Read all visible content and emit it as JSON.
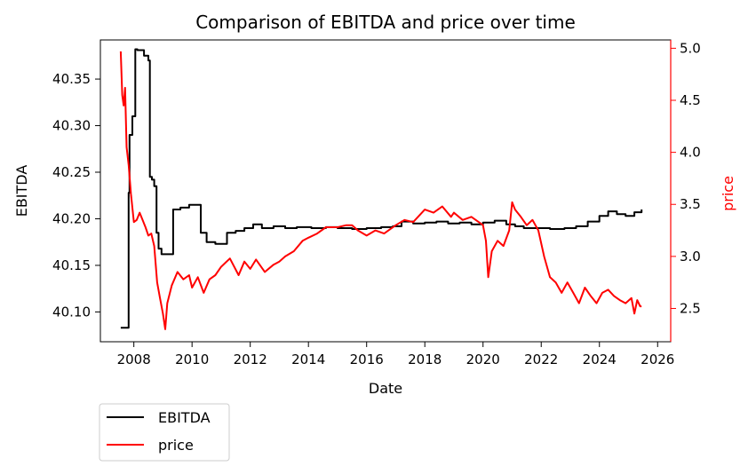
{
  "chart_data": {
    "type": "line",
    "title": "Comparison of EBITDA and price over time",
    "xlabel": "Date",
    "ylabel_left": "EBITDA",
    "ylabel_right": "price",
    "xlim": [
      2006.85,
      2026.45
    ],
    "ylim_left": [
      40.068,
      40.392
    ],
    "ylim_right": [
      2.18,
      5.08
    ],
    "x_ticks": [
      2008,
      2010,
      2012,
      2014,
      2016,
      2018,
      2020,
      2022,
      2024,
      2026
    ],
    "y_ticks_left": [
      40.1,
      40.15,
      40.2,
      40.25,
      40.3,
      40.35
    ],
    "y_ticks_right": [
      2.5,
      3.0,
      3.5,
      4.0,
      4.5,
      5.0
    ],
    "legend_position": "below-left",
    "colors": {
      "EBITDA": "#000000",
      "price": "#ff0000",
      "axis_right": "#ff0000"
    },
    "series": [
      {
        "name": "EBITDA",
        "axis": "left",
        "step": true,
        "x": [
          2007.55,
          2007.82,
          2007.85,
          2007.95,
          2008.05,
          2008.12,
          2008.35,
          2008.5,
          2008.55,
          2008.62,
          2008.7,
          2008.78,
          2008.85,
          2008.95,
          2009.2,
          2009.35,
          2009.6,
          2009.9,
          2010.3,
          2010.5,
          2010.8,
          2011.2,
          2011.5,
          2011.8,
          2012.1,
          2012.4,
          2012.8,
          2013.2,
          2013.6,
          2014.1,
          2014.6,
          2015.0,
          2015.5,
          2016.0,
          2016.5,
          2016.9,
          2017.2,
          2017.6,
          2018.0,
          2018.4,
          2018.8,
          2019.2,
          2019.6,
          2020.0,
          2020.4,
          2020.8,
          2021.1,
          2021.4,
          2021.8,
          2022.3,
          2022.8,
          2023.2,
          2023.6,
          2024.0,
          2024.3,
          2024.6,
          2024.9,
          2025.2,
          2025.45
        ],
        "values": [
          40.083,
          40.228,
          40.29,
          40.31,
          40.382,
          40.381,
          40.375,
          40.37,
          40.245,
          40.242,
          40.235,
          40.185,
          40.168,
          40.162,
          40.162,
          40.21,
          40.212,
          40.215,
          40.185,
          40.175,
          40.173,
          40.185,
          40.187,
          40.19,
          40.194,
          40.19,
          40.192,
          40.19,
          40.191,
          40.19,
          40.191,
          40.19,
          40.189,
          40.19,
          40.191,
          40.192,
          40.197,
          40.195,
          40.196,
          40.197,
          40.195,
          40.196,
          40.194,
          40.196,
          40.198,
          40.194,
          40.192,
          40.19,
          40.19,
          40.189,
          40.19,
          40.192,
          40.197,
          40.203,
          40.208,
          40.205,
          40.203,
          40.207,
          40.21
        ]
      },
      {
        "name": "price",
        "axis": "right",
        "step": false,
        "x": [
          2007.55,
          2007.6,
          2007.65,
          2007.7,
          2007.75,
          2007.82,
          2007.9,
          2008.0,
          2008.1,
          2008.2,
          2008.3,
          2008.4,
          2008.5,
          2008.6,
          2008.7,
          2008.8,
          2008.9,
          2009.0,
          2009.08,
          2009.15,
          2009.3,
          2009.5,
          2009.7,
          2009.9,
          2010.0,
          2010.2,
          2010.4,
          2010.6,
          2010.8,
          2011.0,
          2011.3,
          2011.6,
          2011.8,
          2012.0,
          2012.2,
          2012.5,
          2012.8,
          2013.0,
          2013.2,
          2013.5,
          2013.8,
          2014.0,
          2014.3,
          2014.6,
          2015.0,
          2015.3,
          2015.5,
          2015.7,
          2016.0,
          2016.3,
          2016.6,
          2017.0,
          2017.3,
          2017.6,
          2018.0,
          2018.3,
          2018.6,
          2018.9,
          2019.0,
          2019.3,
          2019.6,
          2019.9,
          2020.0,
          2020.1,
          2020.18,
          2020.3,
          2020.5,
          2020.7,
          2020.9,
          2021.0,
          2021.1,
          2021.3,
          2021.5,
          2021.7,
          2021.9,
          2022.1,
          2022.3,
          2022.5,
          2022.7,
          2022.9,
          2023.1,
          2023.3,
          2023.5,
          2023.7,
          2023.9,
          2024.1,
          2024.3,
          2024.5,
          2024.7,
          2024.9,
          2025.1,
          2025.2,
          2025.3,
          2025.4,
          2025.45
        ],
        "values": [
          4.97,
          4.55,
          4.45,
          4.62,
          4.05,
          3.88,
          3.6,
          3.33,
          3.35,
          3.42,
          3.35,
          3.28,
          3.2,
          3.22,
          3.1,
          2.75,
          2.6,
          2.45,
          2.3,
          2.55,
          2.72,
          2.85,
          2.78,
          2.82,
          2.7,
          2.8,
          2.65,
          2.78,
          2.82,
          2.9,
          2.98,
          2.82,
          2.95,
          2.88,
          2.97,
          2.85,
          2.92,
          2.95,
          3.0,
          3.05,
          3.15,
          3.18,
          3.22,
          3.28,
          3.28,
          3.3,
          3.3,
          3.25,
          3.2,
          3.25,
          3.22,
          3.3,
          3.35,
          3.33,
          3.45,
          3.42,
          3.48,
          3.38,
          3.42,
          3.35,
          3.38,
          3.32,
          3.3,
          3.15,
          2.8,
          3.05,
          3.15,
          3.1,
          3.25,
          3.52,
          3.45,
          3.38,
          3.3,
          3.35,
          3.25,
          3.0,
          2.8,
          2.75,
          2.65,
          2.75,
          2.65,
          2.55,
          2.7,
          2.62,
          2.55,
          2.65,
          2.68,
          2.62,
          2.58,
          2.55,
          2.6,
          2.45,
          2.58,
          2.52,
          2.52
        ]
      }
    ]
  }
}
